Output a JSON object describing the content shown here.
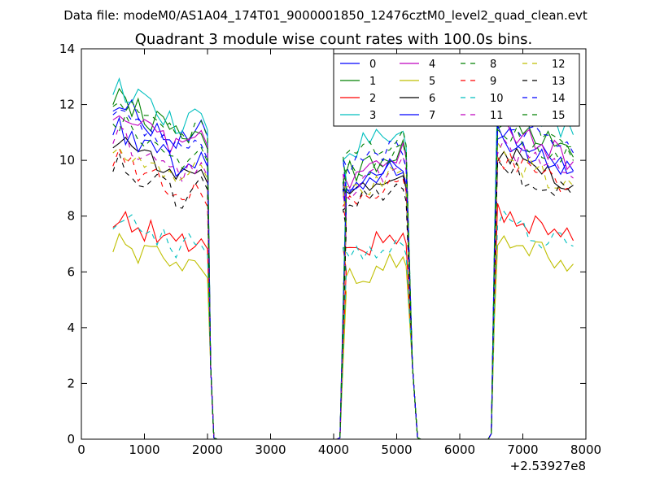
{
  "chart_data": {
    "type": "line",
    "suptitle": "Data file: modeM0/AS1A04_174T01_9000001850_12476cztM0_level2_quad_clean.evt",
    "title": "Quadrant 3 module wise count rates with 100.0s bins.",
    "xlabel": "",
    "ylabel": "",
    "x_offset_label": "+2.53927e8",
    "xlim": [
      0,
      8000
    ],
    "ylim": [
      0,
      14
    ],
    "xticks": [
      0,
      1000,
      2000,
      3000,
      4000,
      5000,
      6000,
      7000,
      8000
    ],
    "yticks": [
      0,
      2,
      4,
      6,
      8,
      10,
      12,
      14
    ],
    "grid": false,
    "legend_position": "top-right",
    "legend_columns": 4,
    "bin_seconds": 100,
    "segments": [
      {
        "start": 500,
        "end": 1900,
        "bins": 15,
        "drop_x": [
          2000,
          2050,
          2100,
          2150
        ]
      },
      {
        "start": 4150,
        "end": 5100,
        "bins": 10,
        "rise_x": [
          4100,
          4150,
          4200
        ],
        "drop_x": [
          5150,
          5250,
          5330
        ]
      },
      {
        "start": 6600,
        "end": 7800,
        "bins": 13,
        "rise_x": [
          6500,
          6550
        ]
      }
    ],
    "series": [
      {
        "name": "0",
        "color": "#0000ff",
        "dash": false,
        "levels": [
          10.8,
          9.3,
          10.0
        ]
      },
      {
        "name": "1",
        "color": "#008000",
        "dash": false,
        "levels": [
          11.0,
          9.8,
          10.5
        ]
      },
      {
        "name": "2",
        "color": "#ff0000",
        "dash": false,
        "levels": [
          7.1,
          6.9,
          7.4
        ]
      },
      {
        "name": "3",
        "color": "#00bfbf",
        "dash": false,
        "levels": [
          11.3,
          10.6,
          11.3
        ]
      },
      {
        "name": "4",
        "color": "#bf00bf",
        "dash": false,
        "levels": [
          10.5,
          9.6,
          10.3
        ]
      },
      {
        "name": "5",
        "color": "#bfbf00",
        "dash": false,
        "levels": [
          6.3,
          6.0,
          6.5
        ]
      },
      {
        "name": "6",
        "color": "#000000",
        "dash": false,
        "levels": [
          9.6,
          9.0,
          9.4
        ]
      },
      {
        "name": "7",
        "color": "#0000ff",
        "dash": false,
        "levels": [
          10.0,
          9.4,
          9.9
        ]
      },
      {
        "name": "8",
        "color": "#008000",
        "dash": true,
        "levels": [
          10.9,
          10.2,
          10.8
        ]
      },
      {
        "name": "9",
        "color": "#ff0000",
        "dash": true,
        "levels": [
          9.0,
          8.8,
          9.2
        ]
      },
      {
        "name": "10",
        "color": "#00bfbf",
        "dash": true,
        "levels": [
          7.0,
          6.8,
          7.1
        ]
      },
      {
        "name": "11",
        "color": "#bf00bf",
        "dash": true,
        "levels": [
          9.7,
          9.2,
          9.6
        ]
      },
      {
        "name": "12",
        "color": "#bfbf00",
        "dash": true,
        "levels": [
          9.4,
          9.0,
          9.3
        ]
      },
      {
        "name": "13",
        "color": "#000000",
        "dash": true,
        "levels": [
          8.8,
          8.6,
          8.9
        ]
      },
      {
        "name": "14",
        "color": "#0000ff",
        "dash": true,
        "levels": [
          10.6,
          10.0,
          10.5
        ]
      },
      {
        "name": "15",
        "color": "#008000",
        "dash": true,
        "levels": [
          10.3,
          9.8,
          10.2
        ]
      }
    ]
  }
}
